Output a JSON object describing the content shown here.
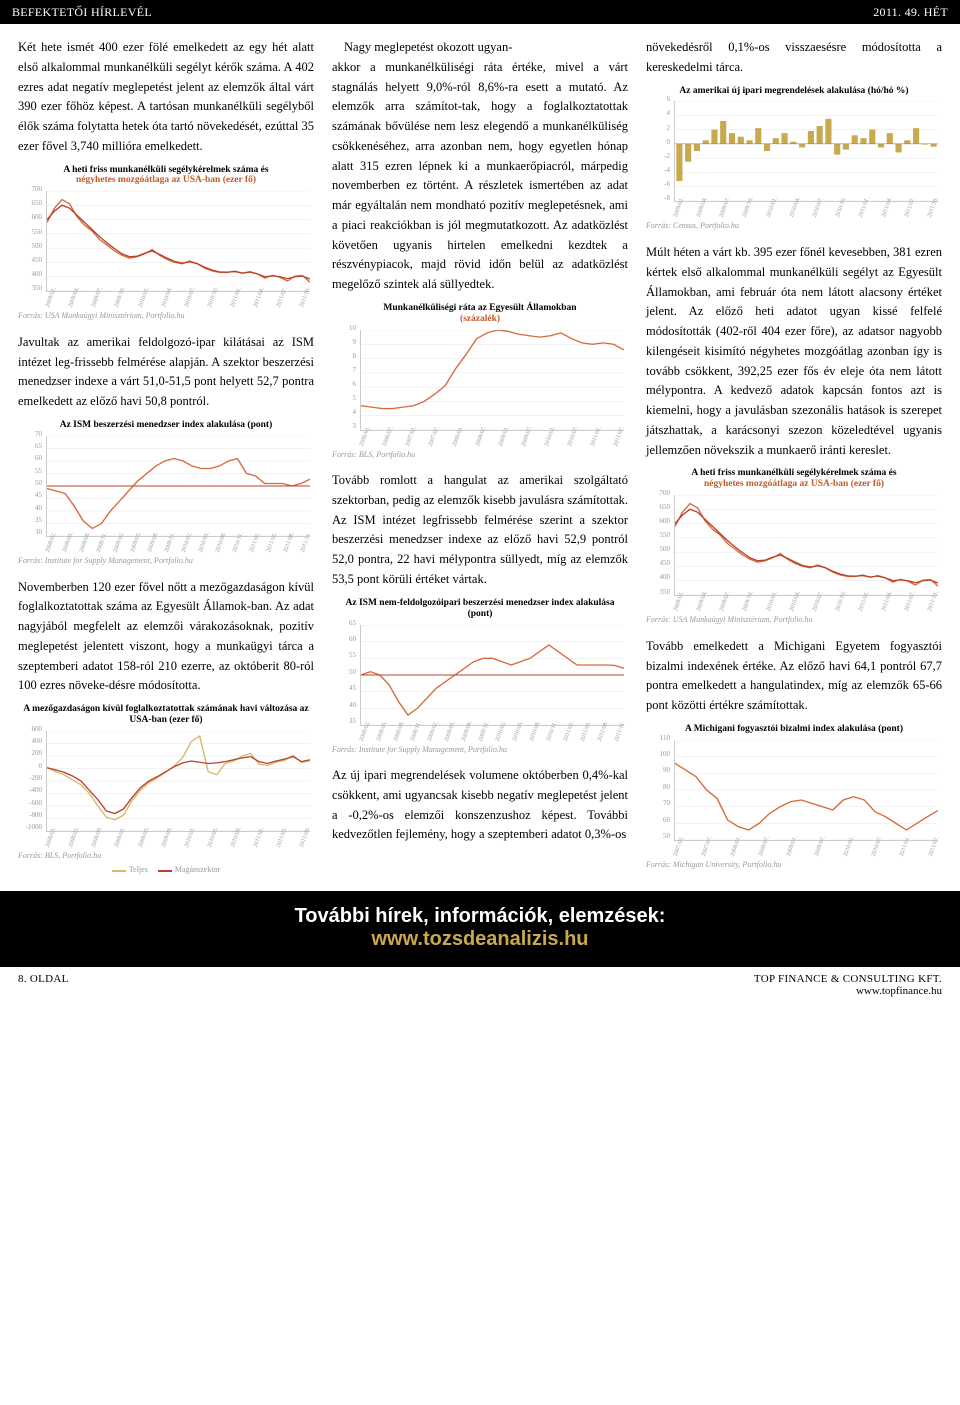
{
  "header": {
    "left": "BEFEKTETŐI HÍRLEVÉL",
    "right": "2011. 49. HÉT"
  },
  "col1": {
    "p1": "Két hete ismét 400 ezer fölé emelkedett az egy hét alatt első alkalommal munkanélküli segélyt kérők száma. A 402 ezres adat negatív meglepetést jelent az elemzők által várt 390 ezer főhöz képest. A tartósan munkanélküli segélyből élők száma folytatta hetek óta tartó növekedését, ezúttal 35 ezer fővel 3,740 millióra emelkedett.",
    "p2": "Javultak az amerikai feldolgozó-ipar kilátásai az ISM intézet leg-frissebb felmérése alapján. A szektor beszerzési menedzser indexe a várt 51,0-51,5 pont helyett 52,7 pontra emelkedett az előző havi 50,8 pontról.",
    "p3": "Novemberben 120 ezer fővel nőtt a mezőgazdaságon kívül foglalkoztatottak száma az Egyesült Államok-ban. Az adat nagyjából megfelelt az elemzői várakozásoknak, pozitív meglepetést jelentett viszont, hogy a munkaügyi tárca a szeptemberi adatot 158-ról 210 ezerre, az októberit 80-ról 100 ezres növeke-désre módosította.",
    "p4": "Nagy meglepetést okozott ugyan-"
  },
  "col2": {
    "p1": "akkor a munkanélküliségi ráta értéke, mivel a várt stagnálás helyett 9,0%-ról 8,6%-ra esett a mutató. Az elemzők arra számítot-tak, hogy a foglalkoztatottak számának bővülése nem lesz elegendő a munkanélküliség csökkenéséhez, arra azonban nem, hogy egyetlen hónap alatt 315 ezren lépnek ki a munkaerőpiacról, márpedig novemberben ez történt. A részletek ismertében az adat már egyáltalán nem mondható pozitív meglepetésnek, ami a piaci reakciókban is jól megmutatkozott. Az adatközlést követően ugyanis hirtelen emelkedni kezdtek a részvénypiacok, majd rövid időn belül az adatközlést megelőző szintek alá süllyedtek.",
    "p2": "Tovább romlott a hangulat az amerikai szolgáltató szektorban, pedig az elemzők kisebb javulásra számítottak. Az ISM intézet legfrissebb felmérése szerint a szektor beszerzési menedzser indexe az előző havi 52,9 pontról 52,0 pontra, 22 havi mélypontra süllyedt, míg az elemzők 53,5 pont körüli értéket vártak.",
    "p3": "Az új ipari megrendelések volumene októberben 0,4%-kal csökkent, ami ugyancsak kisebb negatív meglepetést jelent a -0,2%-os elemzői konszenzushoz képest. További kedvezőtlen fejlemény, hogy a szeptemberi adatot 0,3%-os"
  },
  "col3": {
    "p1": "növekedésről 0,1%-os visszaesésre módosította a kereskedelmi tárca.",
    "p2": "Múlt héten a várt kb. 395 ezer főnél kevesebben, 381 ezren kértek első alkalommal munkanélküli segélyt az Egyesült Államokban, ami február óta nem látott alacsony értéket jelent. Az előző heti adatot ugyan kissé felfelé módosították (402-ről 404 ezer főre), az adatsor nagyobb kilengéseit kisimító négyhetes mozgóátlag azonban így is tovább csökkent, 392,25 ezer fős év eleje óta nem látott mélypontra. A kedvező adatok kapcsán fontos azt is kiemelni, hogy a javulásban szezonális hatások is szerepet játszhattak, a karácsonyi szezon közeledtével ugyanis jellemzően növekszik a munkaerő iránti kereslet.",
    "p3": "Tovább emelkedett a Michigani Egyetem fogyasztói bizalmi indexének értéke. Az előző havi 64,1 pontról 67,7 pontra emelkedett a hangulatindex, míg az elemzők 65-66 pont közötti értékre számítottak."
  },
  "chart1": {
    "title": "A heti friss munkanélküli segélykérelmek száma és",
    "subtitle": "négyhetes mozgóátlaga az USA-ban (ezer fő)",
    "ymin": 350,
    "ymax": 700,
    "ystep": 50,
    "color1": "#d66a3a",
    "color2": "#b9422a",
    "xlabels": [
      "2009/01.",
      "2009/04.",
      "2009/07.",
      "2009/10.",
      "2010/01.",
      "2010/04.",
      "2010/07.",
      "2010/10.",
      "2011/01.",
      "2011/04.",
      "2011/07.",
      "2011/10."
    ],
    "series1": [
      590,
      640,
      670,
      655,
      610,
      580,
      560,
      530,
      510,
      490,
      475,
      465,
      470,
      480,
      495,
      475,
      460,
      450,
      445,
      455,
      445,
      430,
      420,
      415,
      415,
      420,
      412,
      418,
      410,
      395,
      405,
      398,
      385,
      402,
      404,
      381
    ],
    "series2": [
      600,
      630,
      650,
      640,
      615,
      590,
      565,
      540,
      518,
      498,
      480,
      470,
      472,
      482,
      490,
      478,
      465,
      453,
      448,
      452,
      446,
      433,
      423,
      417,
      416,
      418,
      413,
      416,
      410,
      400,
      403,
      400,
      393,
      400,
      402,
      392
    ],
    "source": "Forrás: USA Munkaügyi Minisztérium, Portfolio.hu"
  },
  "chart2": {
    "title": "Az ISM beszerzési menedzser index alakulása (pont)",
    "ymin": 30,
    "ymax": 70,
    "ystep": 5,
    "color": "#d66a3a",
    "refcolor": "#b9422a",
    "xlabels": [
      "2008/02.",
      "2008/05.",
      "2008/08.",
      "2008/11.",
      "2009/02.",
      "2009/05.",
      "2009/08.",
      "2009/11.",
      "2010/02.",
      "2010/05.",
      "2010/08.",
      "2010/11.",
      "2011/02.",
      "2011/05.",
      "2011/08.",
      "2011/11."
    ],
    "series": [
      49,
      48,
      47,
      42,
      36,
      33,
      35,
      40,
      44,
      48,
      52,
      55,
      58,
      60,
      61,
      60,
      58,
      57,
      57,
      58,
      60,
      61,
      55,
      54,
      51,
      51,
      51,
      50,
      51,
      52.7
    ],
    "refline": 50,
    "source": "Forrás: Institute for Supply Management, Portfolio.hu"
  },
  "chart3": {
    "title": "A mezőgazdaságon kívül foglalkoztatottak számának havi változása az USA-ban (ezer fő)",
    "ymin": -1000,
    "ymax": 600,
    "ystep": 200,
    "color1": "#d6b96a",
    "color2": "#b9422a",
    "xlabels": [
      "2008/01.",
      "2008/05.",
      "2008/09.",
      "2009/01.",
      "2009/05.",
      "2009/09.",
      "2010/01.",
      "2010/05.",
      "2010/09.",
      "2011/01.",
      "2011/05.",
      "2011/09."
    ],
    "series1": [
      20,
      -50,
      -100,
      -180,
      -260,
      -400,
      -600,
      -780,
      -820,
      -750,
      -520,
      -350,
      -230,
      -150,
      -60,
      40,
      180,
      430,
      520,
      -50,
      -100,
      80,
      120,
      200,
      240,
      70,
      50,
      100,
      130,
      210,
      100,
      120
    ],
    "series2": [
      10,
      -20,
      -60,
      -120,
      -200,
      -350,
      -500,
      -680,
      -720,
      -650,
      -470,
      -310,
      -200,
      -130,
      -50,
      30,
      90,
      120,
      100,
      80,
      90,
      110,
      140,
      170,
      190,
      110,
      80,
      120,
      150,
      190,
      110,
      140
    ],
    "legend1": "Teljes",
    "legend2": "Magánszektor",
    "source": "Forrás: BLS, Portfolio.hu"
  },
  "chart4": {
    "title": "Munkanélküliségi ráta az Egyesült Államokban",
    "subtitle": "(százalék)",
    "ymin": 3,
    "ymax": 10,
    "ystep": 1,
    "color": "#d66a3a",
    "xlabels": [
      "2006/01.",
      "2006/07.",
      "2007/01.",
      "2007/07.",
      "2008/01.",
      "2008/07.",
      "2009/01.",
      "2009/07.",
      "2010/01.",
      "2010/07.",
      "2011/01.",
      "2011/07."
    ],
    "series": [
      4.7,
      4.6,
      4.5,
      4.5,
      4.6,
      4.7,
      5.0,
      5.5,
      6.1,
      7.3,
      8.3,
      9.4,
      9.8,
      10.0,
      9.9,
      9.7,
      9.6,
      9.5,
      9.6,
      9.8,
      9.4,
      9.1,
      9.0,
      9.1,
      9.0,
      8.6
    ],
    "source": "Forrás: BLS, Portfolio.hu"
  },
  "chart5": {
    "title": "Az ISM nem-feldolgozóipari beszerzési menedzser index alakulása (pont)",
    "ymin": 35,
    "ymax": 65,
    "ystep": 5,
    "color": "#d66a3a",
    "refcolor": "#b9422a",
    "xlabels": [
      "2008/02.",
      "2008/05.",
      "2008/08.",
      "2008/11.",
      "2009/02.",
      "2009/05.",
      "2009/08.",
      "2009/11.",
      "2010/02.",
      "2010/05.",
      "2010/08.",
      "2010/11.",
      "2011/02.",
      "2011/05.",
      "2011/08.",
      "2011/11."
    ],
    "series": [
      50,
      51,
      50,
      47,
      42,
      38,
      40,
      43,
      46,
      48,
      50,
      52,
      54,
      55,
      55,
      54,
      53,
      54,
      55,
      57,
      59,
      57,
      55,
      53,
      53,
      53,
      53,
      52.9,
      52.0
    ],
    "refline": 50,
    "source": "Forrás: Institute for Supply Management, Portfolio.hu"
  },
  "chart6": {
    "title": "Az amerikai új ipari megrendelések alakulása (hó/hó %)",
    "type": "bar",
    "ymin": -8,
    "ymax": 6,
    "ystep": 2,
    "color": "#c9a94e",
    "xlabels": [
      "2009/01.",
      "2009/04.",
      "2009/07.",
      "2009/10.",
      "2010/01.",
      "2010/04.",
      "2010/07.",
      "2010/10.",
      "2011/01.",
      "2011/04.",
      "2011/07.",
      "2011/10."
    ],
    "series": [
      -5.2,
      -2.5,
      -1.0,
      0.5,
      2.0,
      3.2,
      1.5,
      1.0,
      0.5,
      2.2,
      -1.0,
      0.8,
      1.5,
      0.3,
      -0.5,
      1.8,
      2.5,
      3.5,
      -1.5,
      -0.8,
      1.2,
      0.8,
      2.0,
      -0.5,
      1.5,
      -1.2,
      0.5,
      2.2,
      -0.1,
      -0.4
    ],
    "source": "Forrás: Census, Portfolio.hu"
  },
  "chart7": {
    "title": "A heti friss munkanélküli segélykérelmek száma és",
    "subtitle": "négyhetes mozgóátlaga az USA-ban (ezer fő)",
    "ymin": 350,
    "ymax": 700,
    "ystep": 50,
    "color1": "#d66a3a",
    "color2": "#b9422a",
    "xlabels": [
      "2009/01.",
      "2009/04.",
      "2009/07.",
      "2009/10.",
      "2010/01.",
      "2010/04.",
      "2010/07.",
      "2010/10.",
      "2011/01.",
      "2011/04.",
      "2011/07.",
      "2011/10."
    ],
    "series1": [
      590,
      640,
      670,
      655,
      610,
      580,
      560,
      530,
      510,
      490,
      475,
      465,
      470,
      480,
      495,
      475,
      460,
      450,
      445,
      455,
      445,
      430,
      420,
      415,
      415,
      420,
      412,
      418,
      410,
      395,
      405,
      398,
      385,
      402,
      404,
      381
    ],
    "series2": [
      600,
      630,
      650,
      640,
      615,
      590,
      565,
      540,
      518,
      498,
      480,
      470,
      472,
      482,
      490,
      478,
      465,
      453,
      448,
      452,
      446,
      433,
      423,
      417,
      416,
      418,
      413,
      416,
      410,
      400,
      403,
      400,
      393,
      400,
      402,
      392
    ],
    "source": "Forrás: USA Munkaügyi Minisztérium, Portfolio.hu"
  },
  "chart8": {
    "title": "A Michigani fogyasztói bizalmi index alakulása (pont)",
    "ymin": 50,
    "ymax": 110,
    "ystep": 10,
    "color": "#d66a3a",
    "xlabels": [
      "2007/01.",
      "2007/07.",
      "2008/01.",
      "2008/07.",
      "2009/01.",
      "2009/07.",
      "2010/01.",
      "2010/07.",
      "2011/01.",
      "2011/07."
    ],
    "series": [
      96,
      92,
      88,
      80,
      75,
      62,
      58,
      56,
      60,
      66,
      70,
      73,
      74,
      72,
      70,
      68,
      74,
      76,
      74,
      67,
      64,
      60,
      56,
      60,
      64,
      67.7
    ],
    "source": "Forrás: Michigan University, Portfolio.hu"
  },
  "footer": {
    "line1": "További hírek, információk, elemzések:",
    "line2": "www.tozsdeanalizis.hu"
  },
  "bottom": {
    "left": "8. OLDAL",
    "right1": "TOP FINANCE & CONSULTING KFT.",
    "right2": "www.topfinance.hu"
  }
}
